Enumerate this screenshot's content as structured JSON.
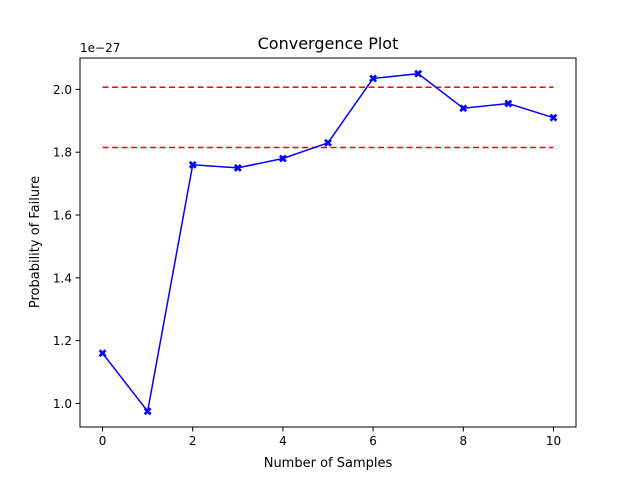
{
  "chart_data": {
    "type": "line",
    "title": "Convergence Plot",
    "xlabel": "Number of Samples",
    "ylabel": "Probability of Failure",
    "y_offset_label": "1e−27",
    "xlim": [
      -0.5,
      10.5
    ],
    "ylim": [
      0.925,
      2.1
    ],
    "x_ticks": [
      0,
      2,
      4,
      6,
      8,
      10
    ],
    "x_tick_labels": [
      "0",
      "2",
      "4",
      "6",
      "8",
      "10"
    ],
    "y_ticks": [
      1.0,
      1.2,
      1.4,
      1.6,
      1.8,
      2.0
    ],
    "y_tick_labels": [
      "1.0",
      "1.2",
      "1.4",
      "1.6",
      "1.8",
      "2.0"
    ],
    "grid": false,
    "legend": "none",
    "series": [
      {
        "x": [
          0,
          1,
          2,
          3,
          4,
          5,
          6,
          7,
          8,
          9,
          10
        ],
        "values": [
          1.16,
          0.975,
          1.76,
          1.75,
          1.78,
          1.83,
          2.035,
          2.05,
          1.94,
          1.955,
          1.91
        ],
        "color": "#0000ff",
        "marker": "X"
      }
    ],
    "reference_lines": [
      {
        "y": 2.007,
        "x_range": [
          0,
          10
        ],
        "color": "#ff0000",
        "style": "dashed"
      },
      {
        "y": 1.815,
        "x_range": [
          0,
          10
        ],
        "color": "#ff0000",
        "style": "dashed"
      }
    ]
  }
}
